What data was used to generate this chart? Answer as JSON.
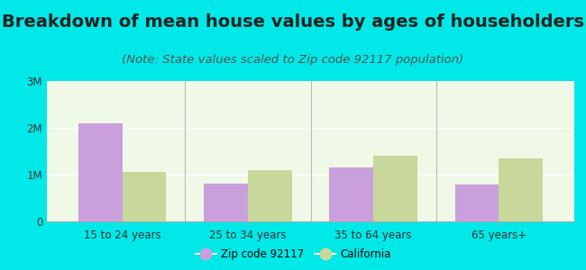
{
  "title": "Breakdown of mean house values by ages of householders",
  "subtitle": "(Note: State values scaled to Zip code 92117 population)",
  "categories": [
    "15 to 24 years",
    "25 to 34 years",
    "35 to 64 years",
    "65 years+"
  ],
  "zip_values": [
    2100000,
    800000,
    1150000,
    780000
  ],
  "ca_values": [
    1050000,
    1100000,
    1400000,
    1350000
  ],
  "zip_color": "#c9a0dc",
  "ca_color": "#c8d89a",
  "background_outer": "#00e8e8",
  "background_inner": "#f0f8e8",
  "ylim": [
    0,
    3000000
  ],
  "yticks": [
    0,
    1000000,
    2000000,
    3000000
  ],
  "ytick_labels": [
    "0",
    "1M",
    "2M",
    "3M"
  ],
  "legend_zip": "Zip code 92117",
  "legend_ca": "California",
  "title_fontsize": 14,
  "subtitle_fontsize": 9.5,
  "bar_width": 0.35
}
